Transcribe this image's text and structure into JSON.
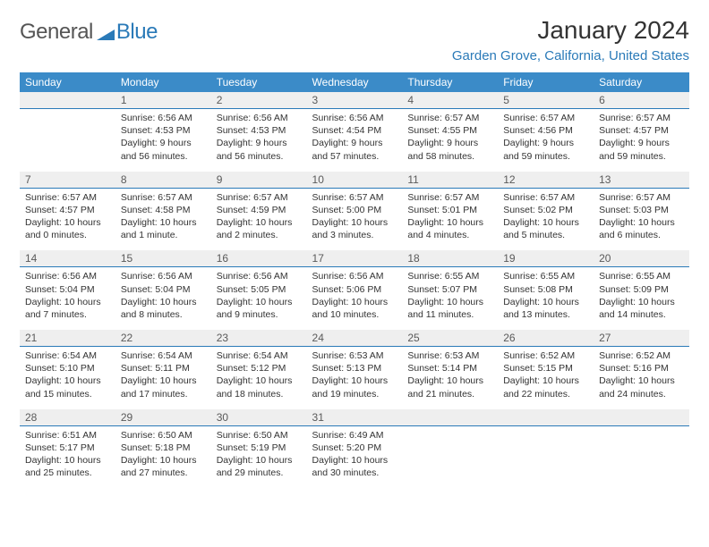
{
  "logo": {
    "general": "General",
    "blue": "Blue"
  },
  "header": {
    "month_title": "January 2024",
    "location": "Garden Grove, California, United States"
  },
  "colors": {
    "header_bg": "#3b8bc8",
    "header_fg": "#ffffff",
    "daynum_bg": "#efefef",
    "daynum_border": "#2a7ab8",
    "logo_blue": "#2a7ab8"
  },
  "day_names": [
    "Sunday",
    "Monday",
    "Tuesday",
    "Wednesday",
    "Thursday",
    "Friday",
    "Saturday"
  ],
  "weeks": [
    {
      "nums": [
        "",
        "1",
        "2",
        "3",
        "4",
        "5",
        "6"
      ],
      "cells": [
        null,
        {
          "sunrise": "Sunrise: 6:56 AM",
          "sunset": "Sunset: 4:53 PM",
          "day1": "Daylight: 9 hours",
          "day2": "and 56 minutes."
        },
        {
          "sunrise": "Sunrise: 6:56 AM",
          "sunset": "Sunset: 4:53 PM",
          "day1": "Daylight: 9 hours",
          "day2": "and 56 minutes."
        },
        {
          "sunrise": "Sunrise: 6:56 AM",
          "sunset": "Sunset: 4:54 PM",
          "day1": "Daylight: 9 hours",
          "day2": "and 57 minutes."
        },
        {
          "sunrise": "Sunrise: 6:57 AM",
          "sunset": "Sunset: 4:55 PM",
          "day1": "Daylight: 9 hours",
          "day2": "and 58 minutes."
        },
        {
          "sunrise": "Sunrise: 6:57 AM",
          "sunset": "Sunset: 4:56 PM",
          "day1": "Daylight: 9 hours",
          "day2": "and 59 minutes."
        },
        {
          "sunrise": "Sunrise: 6:57 AM",
          "sunset": "Sunset: 4:57 PM",
          "day1": "Daylight: 9 hours",
          "day2": "and 59 minutes."
        }
      ]
    },
    {
      "nums": [
        "7",
        "8",
        "9",
        "10",
        "11",
        "12",
        "13"
      ],
      "cells": [
        {
          "sunrise": "Sunrise: 6:57 AM",
          "sunset": "Sunset: 4:57 PM",
          "day1": "Daylight: 10 hours",
          "day2": "and 0 minutes."
        },
        {
          "sunrise": "Sunrise: 6:57 AM",
          "sunset": "Sunset: 4:58 PM",
          "day1": "Daylight: 10 hours",
          "day2": "and 1 minute."
        },
        {
          "sunrise": "Sunrise: 6:57 AM",
          "sunset": "Sunset: 4:59 PM",
          "day1": "Daylight: 10 hours",
          "day2": "and 2 minutes."
        },
        {
          "sunrise": "Sunrise: 6:57 AM",
          "sunset": "Sunset: 5:00 PM",
          "day1": "Daylight: 10 hours",
          "day2": "and 3 minutes."
        },
        {
          "sunrise": "Sunrise: 6:57 AM",
          "sunset": "Sunset: 5:01 PM",
          "day1": "Daylight: 10 hours",
          "day2": "and 4 minutes."
        },
        {
          "sunrise": "Sunrise: 6:57 AM",
          "sunset": "Sunset: 5:02 PM",
          "day1": "Daylight: 10 hours",
          "day2": "and 5 minutes."
        },
        {
          "sunrise": "Sunrise: 6:57 AM",
          "sunset": "Sunset: 5:03 PM",
          "day1": "Daylight: 10 hours",
          "day2": "and 6 minutes."
        }
      ]
    },
    {
      "nums": [
        "14",
        "15",
        "16",
        "17",
        "18",
        "19",
        "20"
      ],
      "cells": [
        {
          "sunrise": "Sunrise: 6:56 AM",
          "sunset": "Sunset: 5:04 PM",
          "day1": "Daylight: 10 hours",
          "day2": "and 7 minutes."
        },
        {
          "sunrise": "Sunrise: 6:56 AM",
          "sunset": "Sunset: 5:04 PM",
          "day1": "Daylight: 10 hours",
          "day2": "and 8 minutes."
        },
        {
          "sunrise": "Sunrise: 6:56 AM",
          "sunset": "Sunset: 5:05 PM",
          "day1": "Daylight: 10 hours",
          "day2": "and 9 minutes."
        },
        {
          "sunrise": "Sunrise: 6:56 AM",
          "sunset": "Sunset: 5:06 PM",
          "day1": "Daylight: 10 hours",
          "day2": "and 10 minutes."
        },
        {
          "sunrise": "Sunrise: 6:55 AM",
          "sunset": "Sunset: 5:07 PM",
          "day1": "Daylight: 10 hours",
          "day2": "and 11 minutes."
        },
        {
          "sunrise": "Sunrise: 6:55 AM",
          "sunset": "Sunset: 5:08 PM",
          "day1": "Daylight: 10 hours",
          "day2": "and 13 minutes."
        },
        {
          "sunrise": "Sunrise: 6:55 AM",
          "sunset": "Sunset: 5:09 PM",
          "day1": "Daylight: 10 hours",
          "day2": "and 14 minutes."
        }
      ]
    },
    {
      "nums": [
        "21",
        "22",
        "23",
        "24",
        "25",
        "26",
        "27"
      ],
      "cells": [
        {
          "sunrise": "Sunrise: 6:54 AM",
          "sunset": "Sunset: 5:10 PM",
          "day1": "Daylight: 10 hours",
          "day2": "and 15 minutes."
        },
        {
          "sunrise": "Sunrise: 6:54 AM",
          "sunset": "Sunset: 5:11 PM",
          "day1": "Daylight: 10 hours",
          "day2": "and 17 minutes."
        },
        {
          "sunrise": "Sunrise: 6:54 AM",
          "sunset": "Sunset: 5:12 PM",
          "day1": "Daylight: 10 hours",
          "day2": "and 18 minutes."
        },
        {
          "sunrise": "Sunrise: 6:53 AM",
          "sunset": "Sunset: 5:13 PM",
          "day1": "Daylight: 10 hours",
          "day2": "and 19 minutes."
        },
        {
          "sunrise": "Sunrise: 6:53 AM",
          "sunset": "Sunset: 5:14 PM",
          "day1": "Daylight: 10 hours",
          "day2": "and 21 minutes."
        },
        {
          "sunrise": "Sunrise: 6:52 AM",
          "sunset": "Sunset: 5:15 PM",
          "day1": "Daylight: 10 hours",
          "day2": "and 22 minutes."
        },
        {
          "sunrise": "Sunrise: 6:52 AM",
          "sunset": "Sunset: 5:16 PM",
          "day1": "Daylight: 10 hours",
          "day2": "and 24 minutes."
        }
      ]
    },
    {
      "nums": [
        "28",
        "29",
        "30",
        "31",
        "",
        "",
        ""
      ],
      "cells": [
        {
          "sunrise": "Sunrise: 6:51 AM",
          "sunset": "Sunset: 5:17 PM",
          "day1": "Daylight: 10 hours",
          "day2": "and 25 minutes."
        },
        {
          "sunrise": "Sunrise: 6:50 AM",
          "sunset": "Sunset: 5:18 PM",
          "day1": "Daylight: 10 hours",
          "day2": "and 27 minutes."
        },
        {
          "sunrise": "Sunrise: 6:50 AM",
          "sunset": "Sunset: 5:19 PM",
          "day1": "Daylight: 10 hours",
          "day2": "and 29 minutes."
        },
        {
          "sunrise": "Sunrise: 6:49 AM",
          "sunset": "Sunset: 5:20 PM",
          "day1": "Daylight: 10 hours",
          "day2": "and 30 minutes."
        },
        null,
        null,
        null
      ]
    }
  ]
}
